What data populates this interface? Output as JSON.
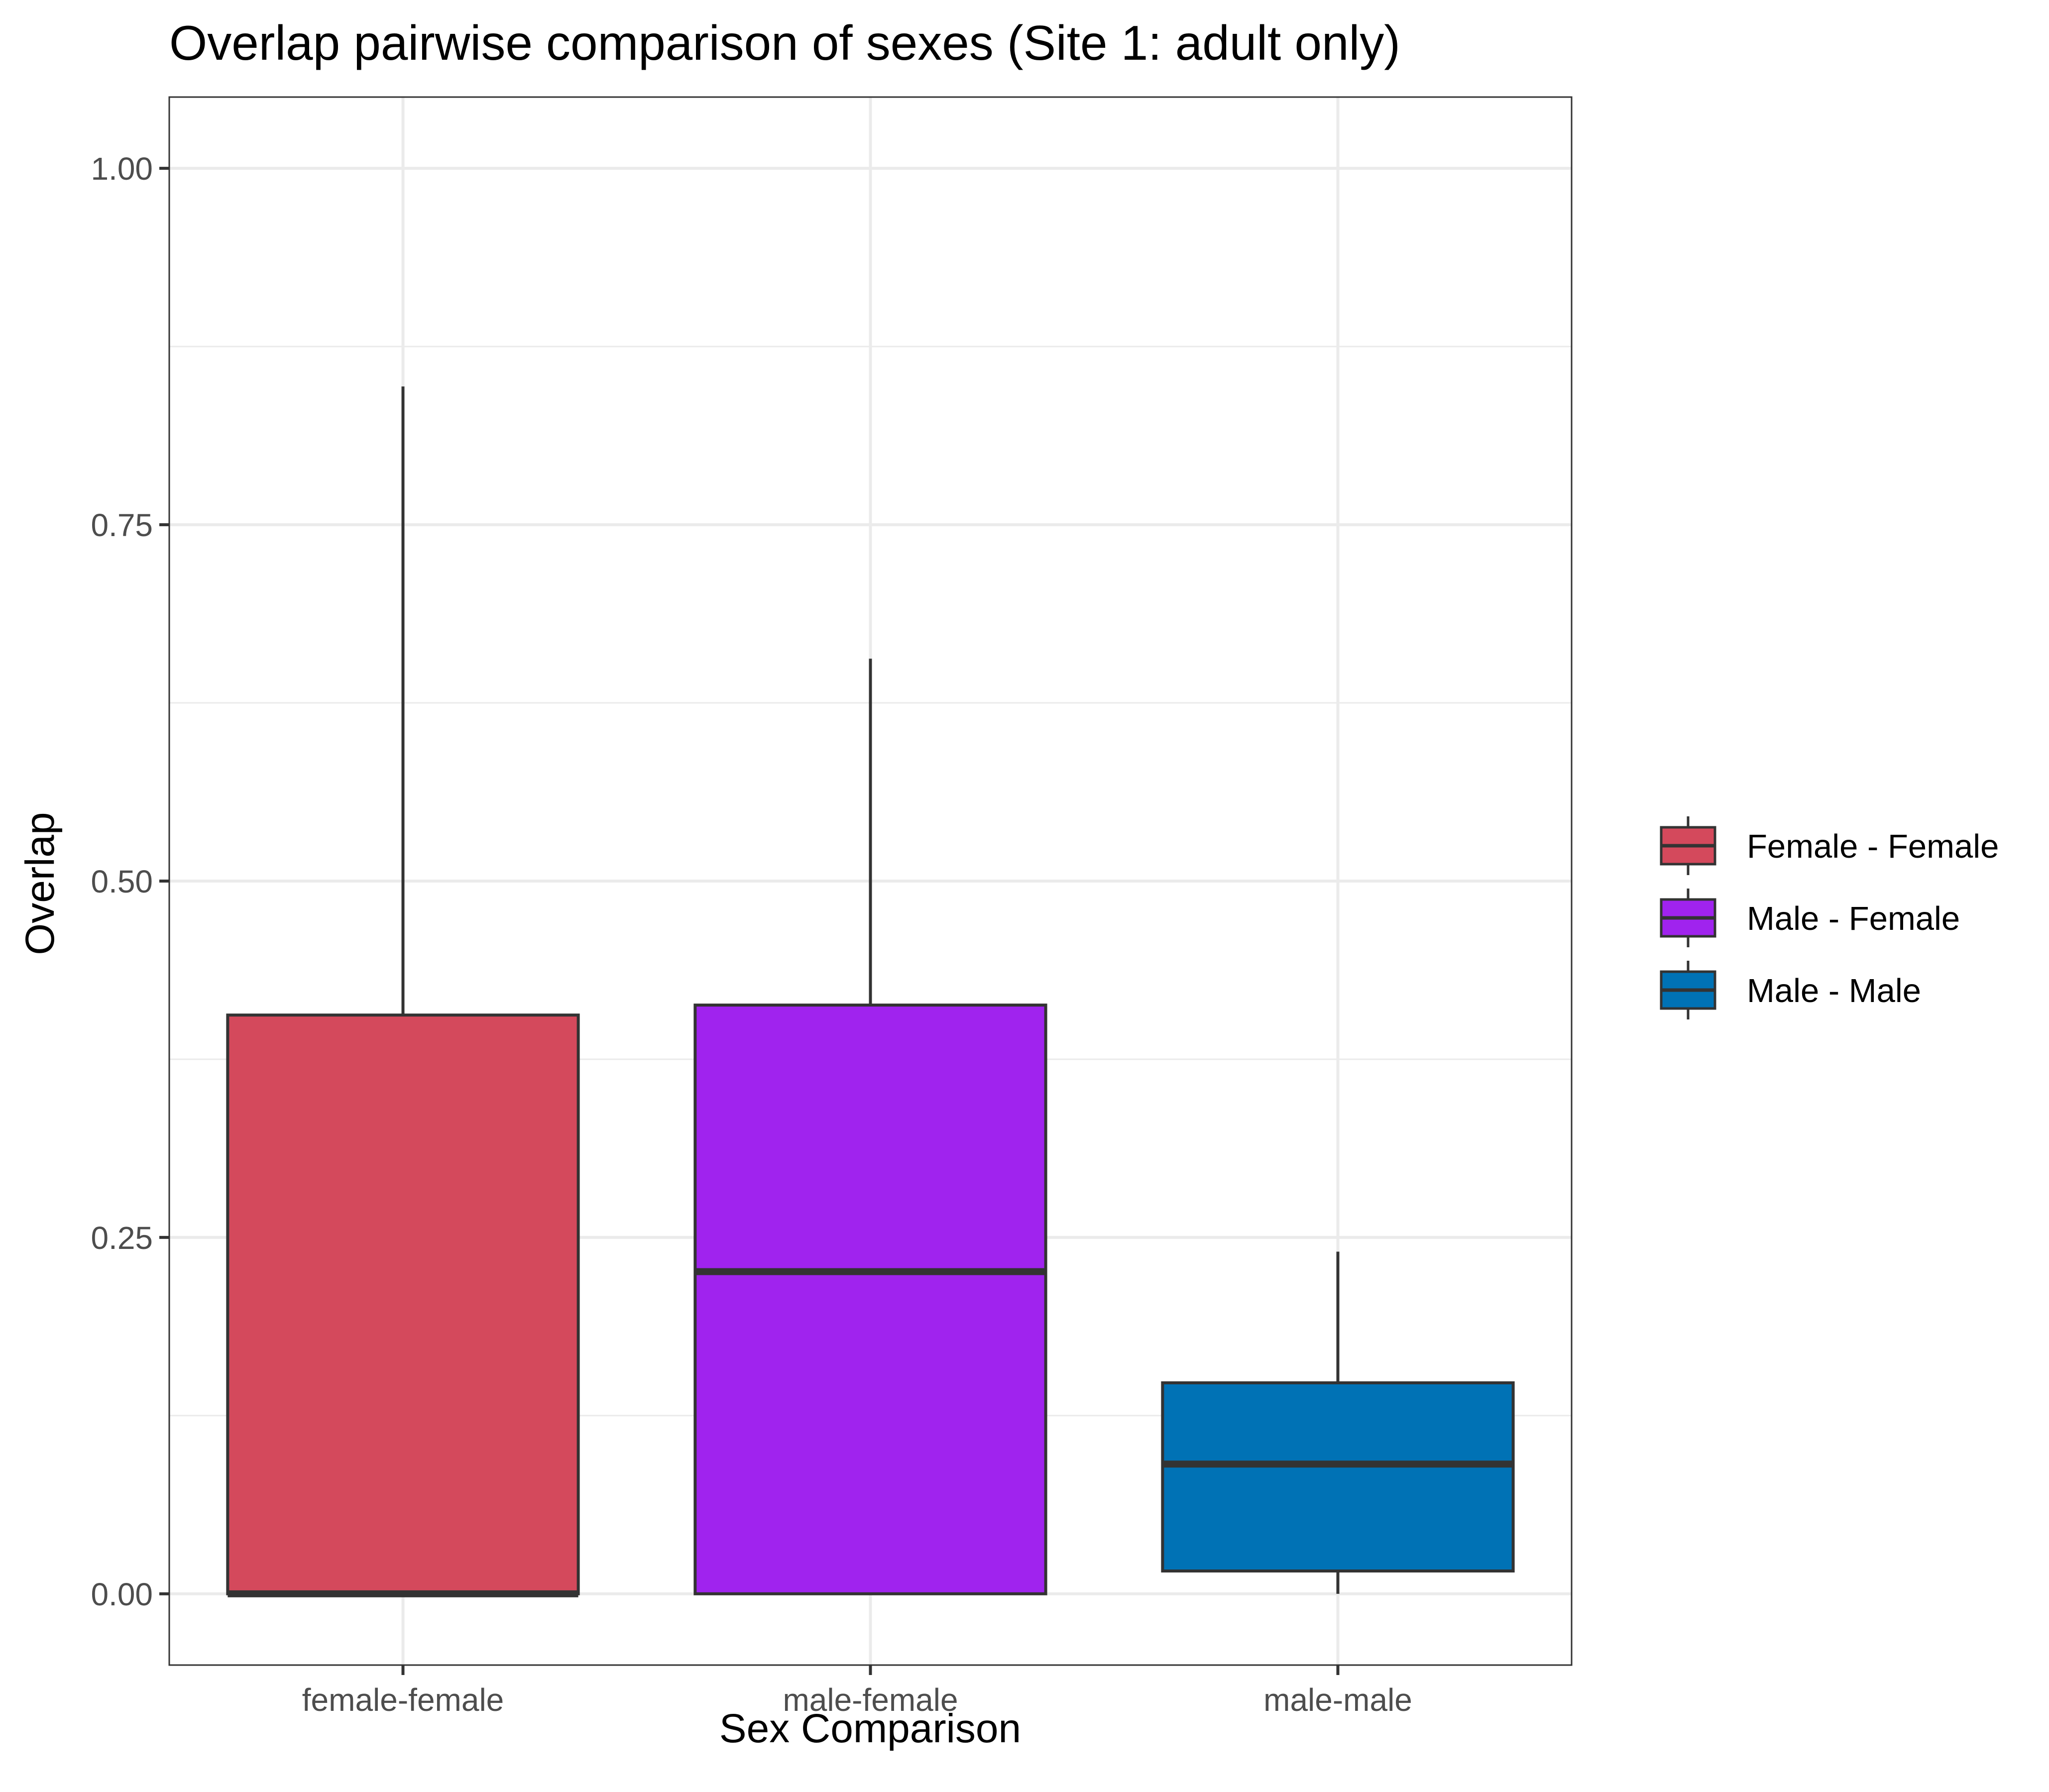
{
  "chart_data": {
    "type": "boxplot",
    "title": "Overlap pairwise comparison of sexes (Site 1: adult only)",
    "xlabel": "Sex Comparison",
    "ylabel": "Overlap",
    "ylim": [
      -0.05,
      1.05
    ],
    "yticks": [
      0.0,
      0.25,
      0.5,
      0.75,
      1.0
    ],
    "ytick_labels": [
      "0.00",
      "0.25",
      "0.50",
      "0.75",
      "1.00"
    ],
    "categories": [
      "female-female",
      "male-female",
      "male-male"
    ],
    "grid": true,
    "legend_position": "right",
    "boxes": [
      {
        "category": "female-female",
        "legend": "Female - Female",
        "color": "#d4495c",
        "min": 0.0,
        "q1": 0.0,
        "median": 0.0,
        "q3": 0.406,
        "max": 0.847
      },
      {
        "category": "male-female",
        "legend": "Male - Female",
        "color": "#a023ee",
        "min": 0.0,
        "q1": 0.0,
        "median": 0.226,
        "q3": 0.413,
        "max": 0.656
      },
      {
        "category": "male-male",
        "legend": "Male - Male",
        "color": "#0072b5",
        "min": 0.0,
        "q1": 0.016,
        "median": 0.091,
        "q3": 0.148,
        "max": 0.24
      }
    ],
    "colors": {
      "outline": "#333333",
      "grid": "#ebebeb",
      "panel_border": "#333333",
      "tick": "#333333",
      "tick_label": "#4d4d4d"
    }
  }
}
